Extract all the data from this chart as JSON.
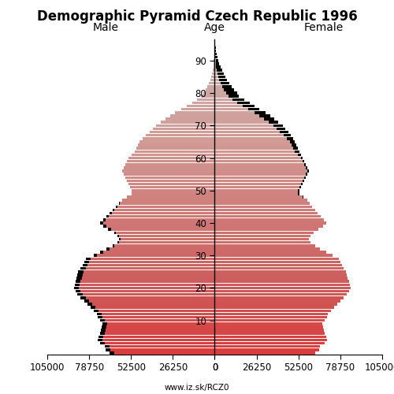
{
  "title": "Demographic Pyramid Czech Republic 1996",
  "label_male": "Male",
  "label_female": "Female",
  "label_age": "Age",
  "source": "www.iz.sk/RCZ0",
  "xlim": 105000,
  "age_groups": [
    0,
    1,
    2,
    3,
    4,
    5,
    6,
    7,
    8,
    9,
    10,
    11,
    12,
    13,
    14,
    15,
    16,
    17,
    18,
    19,
    20,
    21,
    22,
    23,
    24,
    25,
    26,
    27,
    28,
    29,
    30,
    31,
    32,
    33,
    34,
    35,
    36,
    37,
    38,
    39,
    40,
    41,
    42,
    43,
    44,
    45,
    46,
    47,
    48,
    49,
    50,
    51,
    52,
    53,
    54,
    55,
    56,
    57,
    58,
    59,
    60,
    61,
    62,
    63,
    64,
    65,
    66,
    67,
    68,
    69,
    70,
    71,
    72,
    73,
    74,
    75,
    76,
    77,
    78,
    79,
    80,
    81,
    82,
    83,
    84,
    85,
    86,
    87,
    88,
    89,
    90,
    91,
    92,
    93,
    94,
    95
  ],
  "male": [
    66000,
    68500,
    69000,
    72000,
    73500,
    73000,
    72000,
    71500,
    71000,
    70500,
    72000,
    73500,
    74000,
    76000,
    78000,
    80000,
    82000,
    84000,
    86000,
    87000,
    88000,
    87500,
    87000,
    86500,
    86000,
    85500,
    84000,
    83000,
    82000,
    81000,
    76000,
    72000,
    68000,
    64000,
    61000,
    60000,
    61000,
    63000,
    67000,
    70000,
    72000,
    70000,
    68000,
    66000,
    64000,
    62000,
    60000,
    58000,
    55000,
    52000,
    52000,
    53000,
    54000,
    55000,
    56000,
    57000,
    58000,
    57000,
    56000,
    55000,
    54000,
    52000,
    50000,
    49000,
    48000,
    47000,
    45000,
    43000,
    41000,
    39000,
    37000,
    34000,
    31000,
    28000,
    25000,
    21000,
    17500,
    14000,
    11000,
    8500,
    7000,
    5500,
    4500,
    3500,
    2700,
    2200,
    1700,
    1300,
    950,
    700,
    500,
    350,
    230,
    150,
    90,
    60
  ],
  "female": [
    63000,
    65500,
    66000,
    69000,
    70500,
    70000,
    69000,
    68500,
    68000,
    67500,
    69000,
    70500,
    71000,
    73000,
    75000,
    77000,
    79000,
    81000,
    83000,
    84000,
    85000,
    84500,
    84000,
    83500,
    83000,
    82500,
    81000,
    80000,
    79000,
    78000,
    74000,
    70000,
    66000,
    63000,
    60000,
    59000,
    60000,
    62000,
    65000,
    68000,
    70000,
    68500,
    66500,
    64500,
    63000,
    61000,
    59500,
    58000,
    55500,
    53000,
    53000,
    54000,
    55000,
    56000,
    57000,
    58000,
    59000,
    58000,
    57000,
    56000,
    55000,
    54000,
    53000,
    52000,
    51000,
    50000,
    49000,
    47500,
    46000,
    44000,
    42500,
    40000,
    37500,
    35000,
    32000,
    28000,
    25000,
    22000,
    18500,
    15000,
    14000,
    12000,
    10500,
    9000,
    7500,
    6500,
    5500,
    4500,
    3600,
    2900,
    2200,
    1700,
    1200,
    850,
    550,
    350
  ],
  "color_black": "#000000",
  "background_color": "#ffffff",
  "title_fontsize": 12,
  "label_fontsize": 10,
  "tick_fontsize": 8.5
}
